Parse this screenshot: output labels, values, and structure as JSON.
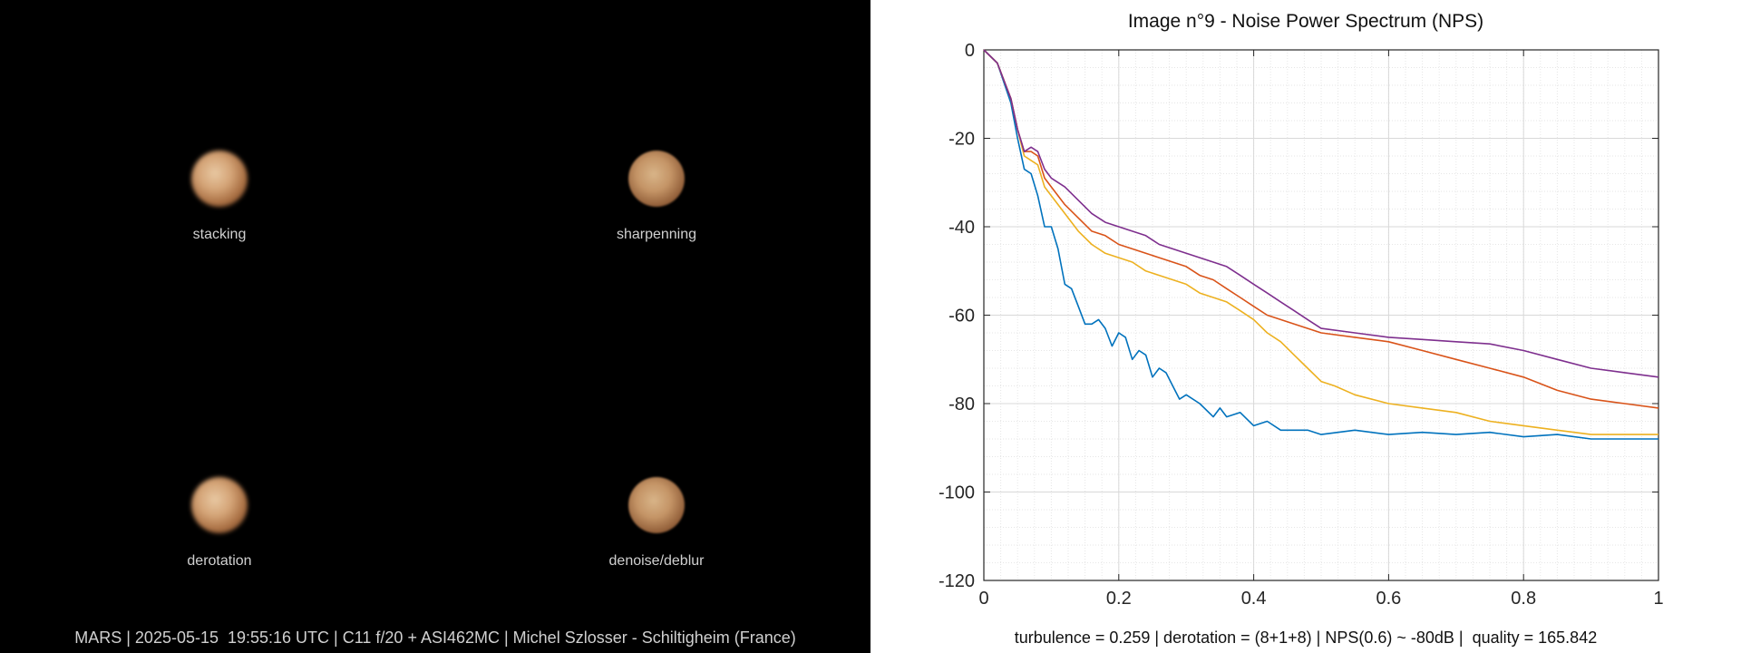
{
  "left": {
    "panels": [
      {
        "label": "stacking"
      },
      {
        "label": "sharpenning"
      },
      {
        "label": "derotation"
      },
      {
        "label": "denoise/deblur"
      }
    ],
    "caption": "MARS | 2025-05-15  19:55:16 UTC | C11 f/20 + ASI462MC | Michel Szlosser - Schiltigheim (France)"
  },
  "footer": "turbulence = 0.259 | derotation = (8+1+8) | NPS(0.6) ~ -80dB |  quality = 165.842",
  "chart_data": {
    "type": "line",
    "title": "Image n°9 - Noise Power Spectrum (NPS)",
    "xlim": [
      0,
      1
    ],
    "ylim": [
      -120,
      0
    ],
    "xticks": [
      0,
      0.2,
      0.4,
      0.6,
      0.8,
      1
    ],
    "xtick_labels": [
      "0",
      "0.2",
      "0.4",
      "0.6",
      "0.8",
      "1"
    ],
    "yticks": [
      0,
      -20,
      -40,
      -60,
      -80,
      -100,
      -120
    ],
    "ytick_labels": [
      "0",
      "-20",
      "-40",
      "-60",
      "-80",
      "-100",
      "-120"
    ],
    "grid": true,
    "minor_grid": true,
    "series": [
      {
        "color": "#0072BD",
        "x": [
          0,
          0.02,
          0.04,
          0.05,
          0.06,
          0.07,
          0.08,
          0.09,
          0.1,
          0.11,
          0.12,
          0.13,
          0.14,
          0.15,
          0.16,
          0.17,
          0.18,
          0.19,
          0.2,
          0.21,
          0.22,
          0.23,
          0.24,
          0.25,
          0.26,
          0.27,
          0.28,
          0.29,
          0.3,
          0.32,
          0.34,
          0.35,
          0.36,
          0.38,
          0.4,
          0.42,
          0.44,
          0.46,
          0.48,
          0.5,
          0.55,
          0.6,
          0.65,
          0.7,
          0.75,
          0.8,
          0.85,
          0.9,
          0.95,
          1.0
        ],
        "y": [
          0,
          -3,
          -12,
          -20,
          -27,
          -28,
          -33,
          -40,
          -40,
          -45,
          -53,
          -54,
          -58,
          -62,
          -62,
          -61,
          -63,
          -67,
          -64,
          -65,
          -70,
          -68,
          -69,
          -74,
          -72,
          -73,
          -76,
          -79,
          -78,
          -80,
          -83,
          -81,
          -83,
          -82,
          -85,
          -84,
          -86,
          -86,
          -86,
          -87,
          -86,
          -87,
          -86.5,
          -87,
          -86.5,
          -87.5,
          -87,
          -88,
          -88,
          -88
        ]
      },
      {
        "color": "#EDB120",
        "x": [
          0,
          0.02,
          0.04,
          0.05,
          0.06,
          0.07,
          0.08,
          0.09,
          0.1,
          0.12,
          0.14,
          0.16,
          0.18,
          0.2,
          0.22,
          0.24,
          0.26,
          0.28,
          0.3,
          0.32,
          0.34,
          0.36,
          0.38,
          0.4,
          0.42,
          0.44,
          0.46,
          0.48,
          0.5,
          0.52,
          0.55,
          0.6,
          0.65,
          0.7,
          0.75,
          0.8,
          0.85,
          0.9,
          0.95,
          1.0
        ],
        "y": [
          0,
          -3,
          -11,
          -18,
          -24,
          -25,
          -26,
          -31,
          -33,
          -37,
          -41,
          -44,
          -46,
          -47,
          -48,
          -50,
          -51,
          -52,
          -53,
          -55,
          -56,
          -57,
          -59,
          -61,
          -64,
          -66,
          -69,
          -72,
          -75,
          -76,
          -78,
          -80,
          -81,
          -82,
          -84,
          -85,
          -86,
          -87,
          -87,
          -87
        ]
      },
      {
        "color": "#D95319",
        "x": [
          0,
          0.02,
          0.04,
          0.05,
          0.06,
          0.07,
          0.08,
          0.09,
          0.1,
          0.12,
          0.14,
          0.16,
          0.18,
          0.2,
          0.22,
          0.24,
          0.26,
          0.28,
          0.3,
          0.32,
          0.34,
          0.36,
          0.38,
          0.4,
          0.42,
          0.44,
          0.46,
          0.48,
          0.5,
          0.55,
          0.6,
          0.65,
          0.7,
          0.75,
          0.8,
          0.85,
          0.9,
          0.95,
          1.0
        ],
        "y": [
          0,
          -3,
          -11,
          -18,
          -23,
          -23,
          -24,
          -29,
          -31,
          -35,
          -38,
          -41,
          -42,
          -44,
          -45,
          -46,
          -47,
          -48,
          -49,
          -51,
          -52,
          -54,
          -56,
          -58,
          -60,
          -61,
          -62,
          -63,
          -64,
          -65,
          -66,
          -68,
          -70,
          -72,
          -74,
          -77,
          -79,
          -80,
          -81
        ]
      },
      {
        "color": "#7E2F8E",
        "x": [
          0,
          0.02,
          0.04,
          0.05,
          0.06,
          0.07,
          0.08,
          0.09,
          0.1,
          0.12,
          0.14,
          0.16,
          0.18,
          0.2,
          0.22,
          0.24,
          0.26,
          0.28,
          0.3,
          0.32,
          0.34,
          0.36,
          0.38,
          0.4,
          0.42,
          0.44,
          0.46,
          0.48,
          0.5,
          0.55,
          0.6,
          0.65,
          0.7,
          0.75,
          0.8,
          0.85,
          0.9,
          0.95,
          1.0
        ],
        "y": [
          0,
          -3,
          -11,
          -18,
          -23,
          -22,
          -23,
          -27,
          -29,
          -31,
          -34,
          -37,
          -39,
          -40,
          -41,
          -42,
          -44,
          -45,
          -46,
          -47,
          -48,
          -49,
          -51,
          -53,
          -55,
          -57,
          -59,
          -61,
          -63,
          -64,
          -65,
          -65.5,
          -66,
          -66.5,
          -68,
          -70,
          -72,
          -73,
          -74
        ]
      }
    ]
  }
}
